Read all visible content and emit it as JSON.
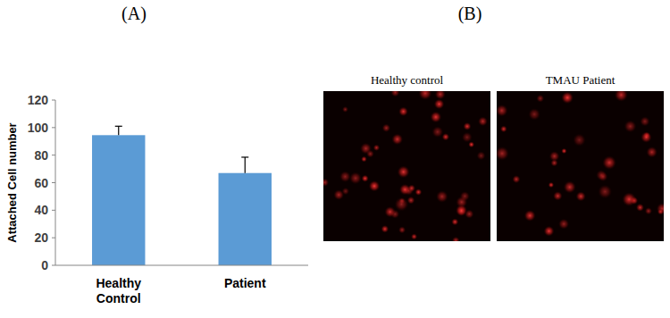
{
  "chart_data": {
    "type": "bar",
    "y_label": "Attached Cell number",
    "categories": [
      "Healthy Control",
      "Patient"
    ],
    "values": [
      94.5,
      67
    ],
    "errors": [
      6.5,
      11.5
    ],
    "color": "#5b9bd5",
    "ylim": [
      0,
      120
    ],
    "yticks": [
      0,
      20,
      40,
      60,
      80,
      100,
      120
    ],
    "grid": false
  },
  "panel_labels": [
    "(A)",
    "(B)"
  ],
  "images": {
    "labels": [
      "Healthy control",
      "TMAU Patient"
    ]
  }
}
